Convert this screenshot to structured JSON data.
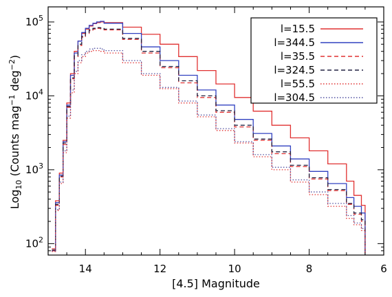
{
  "chart_data": {
    "type": "line",
    "style": "step",
    "title": "",
    "xlabel": "[4.5] Magnitude",
    "ylabel_parts": [
      "Log",
      "10",
      " (Counts mag",
      "−1",
      " deg",
      "−2",
      ")"
    ],
    "x_reversed": true,
    "xlim": [
      15.0,
      6.0
    ],
    "ylim": [
      70,
      160000
    ],
    "y_scale": "log",
    "grid": false,
    "legend_position": "top-right",
    "x_ticks": [
      {
        "value": 14,
        "label": "14"
      },
      {
        "value": 12,
        "label": "12"
      },
      {
        "value": 10,
        "label": "10"
      },
      {
        "value": 8,
        "label": "8"
      },
      {
        "value": 6,
        "label": "6"
      }
    ],
    "y_ticks": [
      {
        "value": 100,
        "base": "10",
        "exp": "2"
      },
      {
        "value": 1000,
        "base": "10",
        "exp": "3"
      },
      {
        "value": 10000,
        "base": "10",
        "exp": "4"
      },
      {
        "value": 100000,
        "base": "10",
        "exp": "5"
      }
    ],
    "series": [
      {
        "name": "l=15.5",
        "color": "#e03030",
        "dash": "solid",
        "x": [
          14.9,
          14.8,
          14.7,
          14.6,
          14.5,
          14.4,
          14.3,
          14.2,
          14.1,
          14.0,
          13.9,
          13.8,
          13.7,
          13.6,
          13.5,
          13.0,
          12.5,
          12.0,
          11.5,
          11.0,
          10.5,
          10.0,
          9.5,
          9.0,
          8.5,
          8.0,
          7.5,
          7.0,
          6.8,
          6.6,
          6.5
        ],
        "y": [
          85,
          380,
          900,
          2500,
          8000,
          20000,
          40000,
          55000,
          70000,
          80000,
          88000,
          95000,
          98000,
          100000,
          98000,
          85000,
          68000,
          50000,
          34000,
          22000,
          14500,
          9500,
          6200,
          4000,
          2700,
          1800,
          1200,
          700,
          450,
          330,
          80
        ]
      },
      {
        "name": "l=344.5",
        "color": "#3040c0",
        "dash": "solid",
        "x": [
          14.9,
          14.8,
          14.7,
          14.6,
          14.5,
          14.4,
          14.3,
          14.2,
          14.1,
          14.0,
          13.9,
          13.8,
          13.7,
          13.6,
          13.5,
          13.0,
          12.5,
          12.0,
          11.5,
          11.0,
          10.5,
          10.0,
          9.5,
          9.0,
          8.5,
          8.0,
          7.5,
          7.0,
          6.8,
          6.6,
          6.5
        ],
        "y": [
          80,
          360,
          850,
          2400,
          7500,
          19000,
          38000,
          55000,
          72000,
          82000,
          90000,
          96000,
          100000,
          102000,
          96000,
          70000,
          46000,
          30000,
          19000,
          12000,
          7500,
          4800,
          3100,
          2100,
          1400,
          950,
          650,
          420,
          320,
          260,
          75
        ]
      },
      {
        "name": "l=35.5",
        "color": "#e03030",
        "dash": "dashed",
        "x": [
          14.9,
          14.8,
          14.7,
          14.6,
          14.5,
          14.4,
          14.3,
          14.2,
          14.1,
          14.0,
          13.9,
          13.8,
          13.7,
          13.6,
          13.5,
          13.0,
          12.5,
          12.0,
          11.5,
          11.0,
          10.5,
          10.0,
          9.5,
          9.0,
          8.5,
          8.0,
          7.5,
          7.0,
          6.8,
          6.6,
          6.5
        ],
        "y": [
          80,
          330,
          800,
          2200,
          7000,
          17000,
          34000,
          48000,
          62000,
          70000,
          76000,
          80000,
          82000,
          81000,
          78000,
          58000,
          38000,
          24000,
          15000,
          9500,
          6000,
          3800,
          2500,
          1650,
          1100,
          750,
          520,
          340,
          250,
          200,
          72
        ]
      },
      {
        "name": "l=324.5",
        "color": "#202040",
        "dash": "dashed",
        "x": [
          14.9,
          14.8,
          14.7,
          14.6,
          14.5,
          14.4,
          14.3,
          14.2,
          14.1,
          14.0,
          13.9,
          13.8,
          13.7,
          13.6,
          13.5,
          13.0,
          12.5,
          12.0,
          11.5,
          11.0,
          10.5,
          10.0,
          9.5,
          9.0,
          8.5,
          8.0,
          7.5,
          7.0,
          6.8,
          6.6,
          6.5
        ],
        "y": [
          82,
          340,
          820,
          2300,
          7200,
          17500,
          35000,
          50000,
          64000,
          72000,
          78000,
          82000,
          84000,
          83000,
          80000,
          60000,
          40000,
          25000,
          16000,
          10000,
          6300,
          4000,
          2600,
          1750,
          1150,
          780,
          540,
          350,
          260,
          210,
          72
        ]
      },
      {
        "name": "l=55.5",
        "color": "#e03030",
        "dash": "dotted",
        "x": [
          14.9,
          14.8,
          14.7,
          14.6,
          14.5,
          14.4,
          14.3,
          14.2,
          14.1,
          14.0,
          13.9,
          13.8,
          13.7,
          13.6,
          13.5,
          13.0,
          12.5,
          12.0,
          11.5,
          11.0,
          10.5,
          10.0,
          9.5,
          9.0,
          8.5,
          8.0,
          7.5,
          7.0,
          6.8,
          6.6,
          6.5
        ],
        "y": [
          78,
          280,
          650,
          1700,
          5000,
          11000,
          20000,
          28000,
          34000,
          38000,
          40000,
          41000,
          41000,
          40000,
          38000,
          28000,
          19000,
          12500,
          8000,
          5200,
          3400,
          2300,
          1500,
          1000,
          680,
          460,
          320,
          220,
          180,
          150,
          70
        ]
      },
      {
        "name": "l=304.5",
        "color": "#5050a0",
        "dash": "dotted",
        "x": [
          14.9,
          14.8,
          14.7,
          14.6,
          14.5,
          14.4,
          14.3,
          14.2,
          14.1,
          14.0,
          13.9,
          13.8,
          13.7,
          13.6,
          13.5,
          13.0,
          12.5,
          12.0,
          11.5,
          11.0,
          10.5,
          10.0,
          9.5,
          9.0,
          8.5,
          8.0,
          7.5,
          7.0,
          6.8,
          6.6,
          6.5
        ],
        "y": [
          80,
          290,
          680,
          1800,
          5300,
          12000,
          21500,
          30000,
          36000,
          40000,
          43000,
          44000,
          44000,
          43000,
          41000,
          30000,
          20000,
          13000,
          8500,
          5500,
          3600,
          2400,
          1600,
          1080,
          730,
          500,
          350,
          240,
          190,
          160,
          70
        ]
      }
    ]
  }
}
